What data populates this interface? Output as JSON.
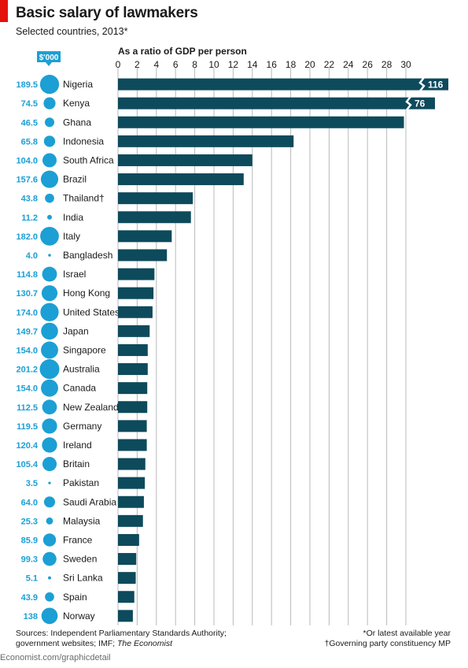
{
  "header": {
    "title": "Basic salary of lawmakers",
    "subtitle": "Selected countries, 2013*"
  },
  "footer": {
    "sources_line1": "Sources: Independent Parliamentary Standards Authority;",
    "sources_line2": "government websites; IMF; ",
    "sources_italic": "The Economist",
    "note1": "*Or latest available year",
    "note2": "†Governing party constituency MP",
    "credit": "Economist.com/graphicdetail"
  },
  "colors": {
    "bar": "#0d4a5c",
    "bubble": "#1c9fd4",
    "value_text": "#1c9fd4",
    "grid": "#b9b9b9",
    "brand_red": "#e3120b"
  },
  "chart_data": {
    "type": "bar",
    "orientation": "horizontal",
    "xlabel": "As a ratio of GDP per person",
    "xlim": [
      0,
      30
    ],
    "xticks": [
      0,
      2,
      4,
      6,
      8,
      10,
      12,
      14,
      16,
      18,
      20,
      22,
      24,
      26,
      28,
      30
    ],
    "grid": true,
    "bubble_label": "$'000",
    "categories": [
      "Nigeria",
      "Kenya",
      "Ghana",
      "Indonesia",
      "South Africa",
      "Brazil",
      "Thailand†",
      "India",
      "Italy",
      "Bangladesh",
      "Israel",
      "Hong Kong",
      "United States",
      "Japan",
      "Singapore",
      "Australia",
      "Canada",
      "New Zealand",
      "Germany",
      "Ireland",
      "Britain",
      "Pakistan",
      "Saudi Arabia",
      "Malaysia",
      "France",
      "Sweden",
      "Sri Lanka",
      "Spain",
      "Norway"
    ],
    "ratio_values": [
      116,
      76,
      29.8,
      18.3,
      14,
      13.1,
      7.8,
      7.6,
      5.6,
      5.1,
      3.8,
      3.7,
      3.6,
      3.3,
      3.1,
      3.1,
      3.05,
      3.05,
      3.0,
      3.0,
      2.85,
      2.8,
      2.7,
      2.6,
      2.2,
      1.9,
      1.85,
      1.7,
      1.55
    ],
    "broken_bar_labels": [
      "116",
      "76"
    ],
    "salary_thousand_usd": [
      189.5,
      74.5,
      46.5,
      65.8,
      104.0,
      157.6,
      43.8,
      11.2,
      182.0,
      4.0,
      114.8,
      130.7,
      174.0,
      149.7,
      154.0,
      201.2,
      154.0,
      112.5,
      119.5,
      120.4,
      105.4,
      3.5,
      64.0,
      25.3,
      85.9,
      99.3,
      5.1,
      43.9,
      138
    ],
    "salary_labels": [
      "189.5",
      "74.5",
      "46.5",
      "65.8",
      "104.0",
      "157.6",
      "43.8",
      "11.2",
      "182.0",
      "4.0",
      "114.8",
      "130.7",
      "174.0",
      "149.7",
      "154.0",
      "201.2",
      "154.0",
      "112.5",
      "119.5",
      "120.4",
      "105.4",
      "3.5",
      "64.0",
      "25.3",
      "85.9",
      "99.3",
      "5.1",
      "43.9",
      "138"
    ]
  }
}
